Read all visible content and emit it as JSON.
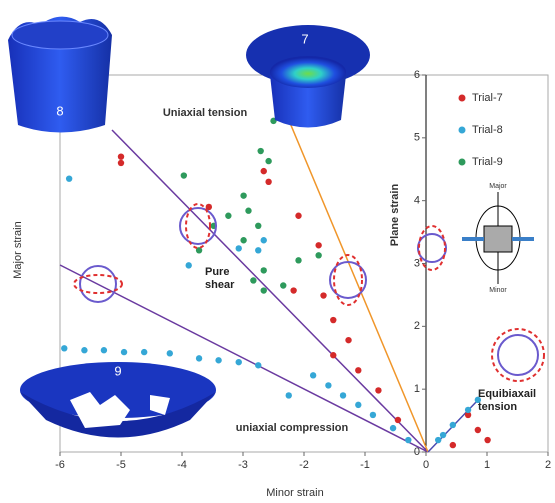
{
  "chart_data": {
    "type": "scatter",
    "xlabel": "Minor strain",
    "ylabel": "Major strain",
    "xlim": [
      -6,
      2
    ],
    "ylim": [
      0,
      6
    ],
    "xticks": [
      -6,
      -5,
      -4,
      -3,
      -2,
      -1,
      0,
      1,
      2
    ],
    "yticks": [
      0,
      1,
      2,
      3,
      4,
      5,
      6
    ],
    "legend": "upper right",
    "series": [
      {
        "name": "Trial-7",
        "color": "#d42a2a",
        "x": [
          -5.0,
          -5.0,
          -3.56,
          -2.66,
          -2.58,
          -2.09,
          -1.76,
          -2.17,
          -1.68,
          -1.52,
          -1.52,
          -1.27,
          -1.11,
          -0.78,
          -0.46,
          0.69,
          0.85,
          1.01,
          0.44
        ],
        "values": [
          4.7,
          4.6,
          3.9,
          4.47,
          4.3,
          3.76,
          3.29,
          2.57,
          2.49,
          2.1,
          1.54,
          1.78,
          1.3,
          0.98,
          0.51,
          0.59,
          0.35,
          0.19,
          0.11
        ]
      },
      {
        "name": "Trial-8",
        "color": "#35a7d6",
        "x": [
          -5.85,
          -5.93,
          -5.6,
          -5.28,
          -4.95,
          -4.62,
          -4.2,
          -3.72,
          -3.4,
          -3.07,
          -2.75,
          -2.25,
          -1.85,
          -1.6,
          -1.36,
          -1.11,
          -0.87,
          -0.54,
          -0.29,
          0.2,
          0.44,
          0.69,
          0.85,
          0.28,
          -2.66,
          -2.75,
          -3.07,
          -3.89
        ],
        "values": [
          4.35,
          1.65,
          1.62,
          1.62,
          1.59,
          1.59,
          1.57,
          1.49,
          1.46,
          1.43,
          1.38,
          0.9,
          1.22,
          1.06,
          0.9,
          0.75,
          0.59,
          0.38,
          0.19,
          0.19,
          0.43,
          0.67,
          0.83,
          0.27,
          3.37,
          3.21,
          3.24,
          2.97
        ]
      },
      {
        "name": "Trial-9",
        "color": "#2e9a5c",
        "x": [
          -3.97,
          -3.48,
          -3.24,
          -2.99,
          -2.91,
          -2.75,
          -2.71,
          -2.58,
          -2.66,
          -2.83,
          -2.99,
          -1.76,
          -2.09,
          -2.34,
          -2.5,
          -3.72,
          -2.66
        ],
        "values": [
          4.4,
          3.6,
          3.76,
          4.08,
          3.84,
          3.6,
          4.79,
          4.63,
          2.89,
          2.73,
          3.37,
          3.13,
          3.05,
          2.65,
          5.27,
          3.21,
          2.57
        ]
      }
    ],
    "annotations": [
      "Uniaxial tension",
      "Plane strain",
      "Pure shear",
      "Equibiaxail tension",
      "uniaxial compression",
      "Major",
      "Minor"
    ],
    "insets": [
      "8",
      "7",
      "9"
    ]
  }
}
